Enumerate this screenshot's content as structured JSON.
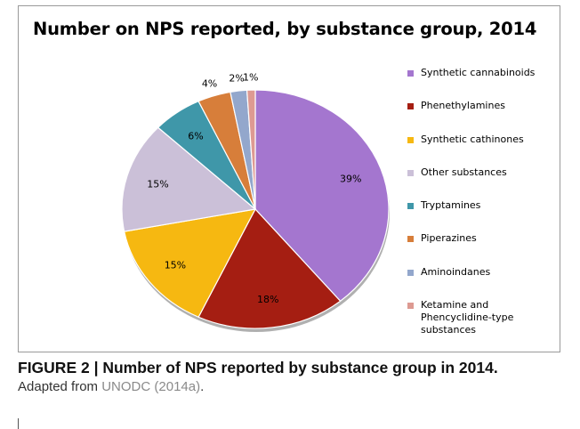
{
  "chart_data": {
    "type": "pie",
    "title": "Number on NPS reported, by substance group, 2014",
    "categories": [
      "Synthetic cannabinoids",
      "Phenethylamines",
      "Synthetic cathinones",
      "Other substances",
      "Tryptamines",
      "Piperazines",
      "Aminoindanes",
      "Ketamine and Phencyclidine-type substances"
    ],
    "values": [
      39,
      18,
      15,
      15,
      6,
      4,
      2,
      1
    ],
    "labels": [
      "39%",
      "18%",
      "15%",
      "15%",
      "6%",
      "4%",
      "2%",
      "1%"
    ],
    "colors": [
      "#a476cf",
      "#a51e12",
      "#f6b811",
      "#cbc0d8",
      "#3f97a9",
      "#d77e3a",
      "#93a7cc",
      "#dd9a92"
    ],
    "legend_position": "right"
  },
  "caption": {
    "title": "FIGURE 2 | Number of NPS reported by substance group in 2014.",
    "prefix": "Adapted from ",
    "link": "UNODC (2014a)",
    "suffix": "."
  }
}
